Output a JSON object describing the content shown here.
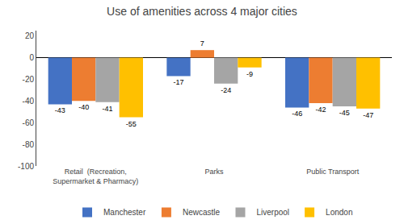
{
  "chart_data": {
    "type": "bar",
    "title": "Use of amenities across 4 major cities",
    "categories": [
      "Retail  (Recreation,\nSupermarket & Pharmacy)",
      "Parks",
      "Public Transport"
    ],
    "series": [
      {
        "name": "Manchester",
        "color": "#4472C4",
        "values": [
          -43,
          -17,
          -46
        ]
      },
      {
        "name": "Newcastle",
        "color": "#ED7D31",
        "values": [
          -40,
          7,
          -42
        ]
      },
      {
        "name": "Liverpool",
        "color": "#A5A5A5",
        "values": [
          -41,
          -24,
          -45
        ]
      },
      {
        "name": "London",
        "color": "#FFC000",
        "values": [
          -55,
          -9,
          -47
        ]
      }
    ],
    "ylim": [
      -100,
      25
    ],
    "yticks": [
      -100,
      -80,
      -60,
      -40,
      -20,
      0,
      20
    ],
    "grid": false,
    "legend": "bottom",
    "data_labels": true
  }
}
